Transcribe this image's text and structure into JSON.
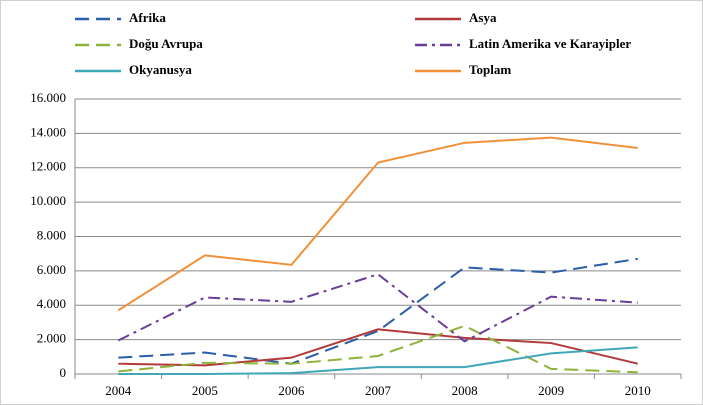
{
  "chart_data": {
    "type": "line",
    "categories": [
      "2004",
      "2005",
      "2006",
      "2007",
      "2008",
      "2009",
      "2010"
    ],
    "series": [
      {
        "name": "Afrika",
        "color": "#2a5ea8",
        "dash": "dashed",
        "values": [
          950,
          1250,
          600,
          2500,
          6200,
          5900,
          6700
        ]
      },
      {
        "name": "Asya",
        "color": "#b33a3a",
        "dash": "solid",
        "values": [
          600,
          500,
          950,
          2600,
          2100,
          1800,
          600
        ]
      },
      {
        "name": "Doğu Avrupa",
        "color": "#8db33a",
        "dash": "dashed",
        "values": [
          150,
          650,
          600,
          1050,
          2800,
          300,
          100
        ]
      },
      {
        "name": "Latin Amerika ve Karayipler",
        "color": "#6a3d9a",
        "dash": "dashdot",
        "values": [
          1950,
          4450,
          4200,
          5800,
          1900,
          4500,
          4150
        ]
      },
      {
        "name": "Okyanusya",
        "color": "#3fa7b8",
        "dash": "solid",
        "values": [
          0,
          0,
          50,
          400,
          400,
          1200,
          1550
        ]
      },
      {
        "name": "Toplam",
        "color": "#f0913a",
        "dash": "solid",
        "values": [
          3700,
          6900,
          6350,
          12300,
          13450,
          13750,
          13150
        ]
      }
    ],
    "ylim": [
      0,
      16000
    ],
    "yticks": [
      0,
      {
        "value": 2000,
        "label": "2.000"
      },
      {
        "value": 4000,
        "label": "4.000"
      },
      {
        "value": 6000,
        "label": "6.000"
      },
      {
        "value": 8000,
        "label": "8.000"
      },
      {
        "value": 10000,
        "label": "10.000"
      },
      {
        "value": 12000,
        "label": "12.000"
      },
      {
        "value": 14000,
        "label": "14.000"
      },
      {
        "value": 16000,
        "label": "16.000"
      }
    ],
    "grid": true
  }
}
